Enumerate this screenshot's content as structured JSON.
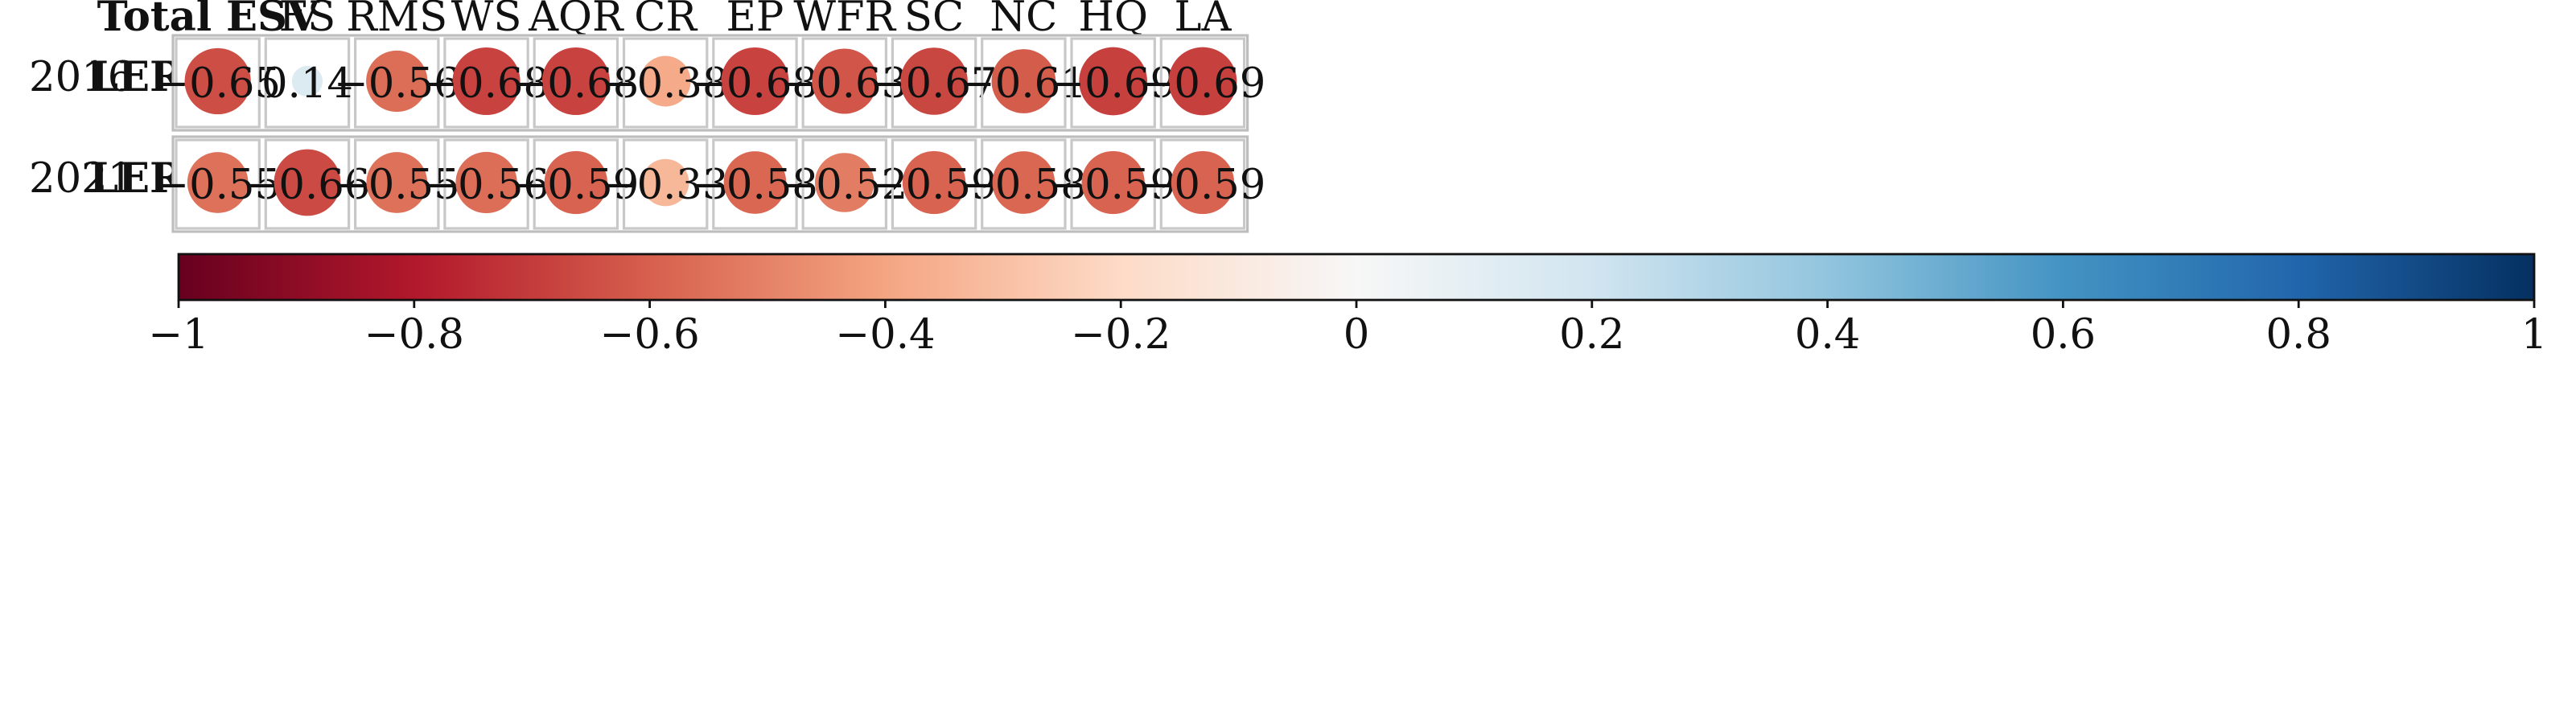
{
  "chart_data": {
    "type": "heatmap",
    "style": "correlation-circles",
    "corner_label": "Total ESV",
    "columns": [
      "FS",
      "RMS",
      "WS",
      "AQR",
      "CR",
      "EP",
      "WFR",
      "SC",
      "NC",
      "HQ",
      "LA"
    ],
    "rows": [
      {
        "year": "2016",
        "label": "LERI",
        "values": [
          -0.65,
          0.14,
          -0.56,
          -0.68,
          -0.68,
          -0.38,
          -0.68,
          -0.63,
          -0.67,
          -0.61,
          -0.69,
          -0.69
        ]
      },
      {
        "year": "2021",
        "label": "LERI",
        "values": [
          -0.55,
          -0.66,
          -0.55,
          -0.56,
          -0.59,
          -0.33,
          -0.58,
          -0.52,
          -0.59,
          -0.58,
          -0.59,
          -0.59
        ]
      }
    ],
    "value_labels": [
      [
        "−0.65",
        "0.14",
        "−0.56",
        "−0.68",
        "−0.68",
        "−0.38",
        "−0.68",
        "−0.63",
        "−0.67",
        "−0.61",
        "−0.69",
        "−0.69"
      ],
      [
        "−0.55",
        "−0.66",
        "−0.55",
        "−0.56",
        "−0.59",
        "−0.33",
        "−0.58",
        "−0.52",
        "−0.59",
        "−0.58",
        "−0.59",
        "−0.59"
      ]
    ],
    "colorbar": {
      "range": [
        -1,
        1
      ],
      "ticks": [
        -1,
        -0.8,
        -0.6,
        -0.4,
        -0.2,
        0,
        0.2,
        0.4,
        0.6,
        0.8,
        1
      ],
      "tick_labels": [
        "−1",
        "−0.8",
        "−0.6",
        "−0.4",
        "−0.2",
        "0",
        "0.2",
        "0.4",
        "0.6",
        "0.8",
        "1"
      ],
      "colors": [
        "#67001f",
        "#b2182b",
        "#d6604d",
        "#f4a582",
        "#fddbc7",
        "#f7f7f7",
        "#d1e5f0",
        "#92c5de",
        "#4393c3",
        "#2166ac",
        "#053061"
      ]
    }
  }
}
